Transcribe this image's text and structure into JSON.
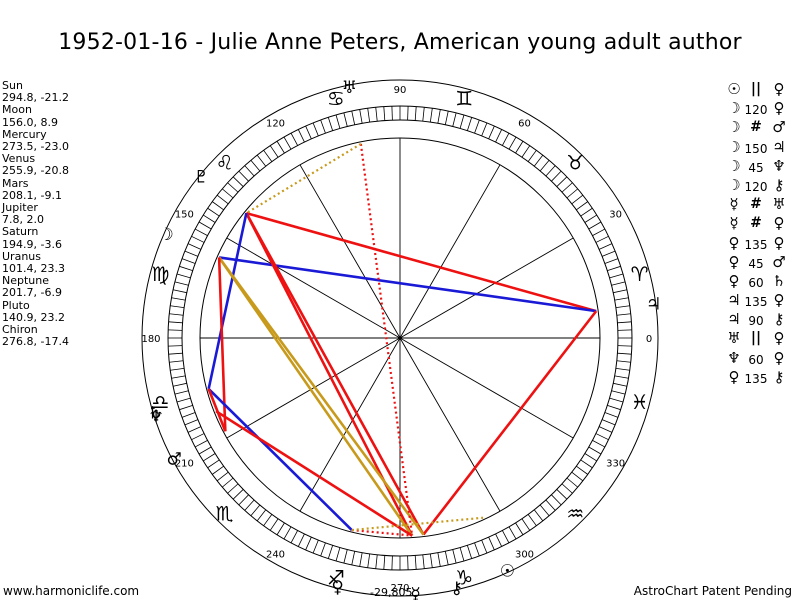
{
  "title": "1952-01-16 - Julie Anne Peters, American young adult author",
  "planets": [
    {
      "name": "Sun",
      "coords": "294.8, -21.2",
      "glyph": "☉",
      "lon": 294.8
    },
    {
      "name": "Moon",
      "coords": "156.0, 8.9",
      "glyph": "☽",
      "lon": 156.0
    },
    {
      "name": "Mercury",
      "coords": "273.5, -23.0",
      "glyph": "☿",
      "lon": 273.5
    },
    {
      "name": "Venus",
      "coords": "255.9, -20.8",
      "glyph": "♀",
      "lon": 255.9
    },
    {
      "name": "Mars",
      "coords": "208.1, -9.1",
      "glyph": "♂",
      "lon": 208.1
    },
    {
      "name": "Jupiter",
      "coords": "7.8, 2.0",
      "glyph": "♃",
      "lon": 7.8
    },
    {
      "name": "Saturn",
      "coords": "194.9, -3.6",
      "glyph": "♄",
      "lon": 194.9
    },
    {
      "name": "Uranus",
      "coords": "101.4, 23.3",
      "glyph": "♅",
      "lon": 101.4
    },
    {
      "name": "Neptune",
      "coords": "201.7, -6.9",
      "glyph": "♆",
      "lon": 201.7
    },
    {
      "name": "Pluto",
      "coords": "140.9, 23.2",
      "glyph": "♇",
      "lon": 140.9
    },
    {
      "name": "Chiron",
      "coords": "276.8, -17.4",
      "glyph": "⚷",
      "lon": 276.8
    }
  ],
  "aspects": [
    {
      "p1": "☉",
      "symbol": "||",
      "p2": "♀"
    },
    {
      "p1": "☽",
      "symbol": "120",
      "p2": "♀"
    },
    {
      "p1": "☽",
      "symbol": "#",
      "p2": "♂"
    },
    {
      "p1": "☽",
      "symbol": "150",
      "p2": "♃"
    },
    {
      "p1": "☽",
      "symbol": "45",
      "p2": "♆"
    },
    {
      "p1": "☽",
      "symbol": "120",
      "p2": "⚷"
    },
    {
      "p1": "☿",
      "symbol": "#",
      "p2": "♅"
    },
    {
      "p1": "☿",
      "symbol": "#",
      "p2": "♀"
    },
    {
      "p1": "♀",
      "symbol": "135",
      "p2": "♀"
    },
    {
      "p1": "♀",
      "symbol": "45",
      "p2": "♂"
    },
    {
      "p1": "♀",
      "symbol": "60",
      "p2": "♄"
    },
    {
      "p1": "♃",
      "symbol": "135",
      "p2": "♀"
    },
    {
      "p1": "♃",
      "symbol": "90",
      "p2": "⚷"
    },
    {
      "p1": "♅",
      "symbol": "||",
      "p2": "♀"
    },
    {
      "p1": "♆",
      "symbol": "60",
      "p2": "♀"
    },
    {
      "p1": "♀",
      "symbol": "135",
      "p2": "⚷"
    }
  ],
  "wheel": {
    "degree_labels": [
      "0",
      "30",
      "60",
      "90",
      "120",
      "150",
      "180",
      "210",
      "240",
      "270",
      "300",
      "330"
    ],
    "zodiac_glyphs": [
      "♈",
      "♉",
      "♊",
      "♋",
      "♌",
      "♍",
      "♎",
      "♏",
      "♐",
      "♑",
      "♒",
      "♓"
    ],
    "aspect_lines": [
      {
        "from": "Jupiter",
        "to": "Pluto",
        "color": "#ee1111",
        "style": "solid"
      },
      {
        "from": "Jupiter",
        "to": "Moon",
        "color": "#1a1ad6",
        "style": "solid"
      },
      {
        "from": "Jupiter",
        "to": "Chiron",
        "color": "#ee1111",
        "style": "solid"
      },
      {
        "from": "Pluto",
        "to": "Mercury",
        "color": "#ee1111",
        "style": "solid"
      },
      {
        "from": "Pluto",
        "to": "Chiron",
        "color": "#ee1111",
        "style": "solid"
      },
      {
        "from": "Pluto",
        "to": "Saturn",
        "color": "#1a1ad6",
        "style": "solid"
      },
      {
        "from": "Moon",
        "to": "Mercury",
        "color": "#c89a1c",
        "style": "solid"
      },
      {
        "from": "Moon",
        "to": "Chiron",
        "color": "#c89a1c",
        "style": "solid"
      },
      {
        "from": "Moon",
        "to": "Mars",
        "color": "#ee1111",
        "style": "solid"
      },
      {
        "from": "Saturn",
        "to": "Venus",
        "color": "#1a1ad6",
        "style": "solid"
      },
      {
        "from": "Neptune",
        "to": "Mercury",
        "color": "#ee1111",
        "style": "solid"
      },
      {
        "from": "Saturn",
        "to": "Mars",
        "color": "#ee1111",
        "style": "solid"
      },
      {
        "from": "Uranus",
        "to": "Mercury",
        "color": "#ee1111",
        "style": "dotted"
      },
      {
        "from": "Venus",
        "to": "Mercury",
        "color": "#ee1111",
        "style": "dotted"
      },
      {
        "from": "Uranus",
        "to": "Pluto",
        "color": "#c89a1c",
        "style": "dotted"
      },
      {
        "from": "Venus",
        "to": "Sun",
        "color": "#c89a1c",
        "style": "dotted"
      }
    ]
  },
  "footer": {
    "left": "www.harmoniclife.com",
    "center": "-29,805",
    "right": "AstroChart Patent Pending"
  },
  "colors": {
    "red": "#ee1111",
    "blue": "#1a1ad6",
    "gold": "#c89a1c"
  }
}
